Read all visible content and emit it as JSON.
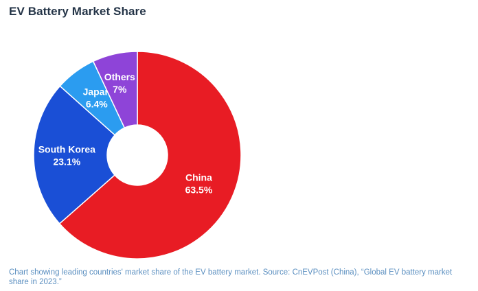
{
  "header": {
    "title": "EV Battery Market Share"
  },
  "caption": "Chart showing leading countries' market share of the EV battery market. Source: CnEVPost (China), “Global EV battery market share in 2023.”",
  "chart_data": {
    "type": "pie",
    "title": "EV Battery Market Share",
    "donut": true,
    "start_angle_deg": 0,
    "direction": "clockwise",
    "slices": [
      {
        "label": "China",
        "value": 63.5,
        "display": "63.5%",
        "color": "#e81c24"
      },
      {
        "label": "South Korea",
        "value": 23.1,
        "display": "23.1%",
        "color": "#1a4fd6"
      },
      {
        "label": "Japan",
        "value": 6.4,
        "display": "6.4%",
        "color": "#2b9cf0"
      },
      {
        "label": "Others",
        "value": 7,
        "display": "7%",
        "color": "#8e44d8"
      }
    ]
  }
}
